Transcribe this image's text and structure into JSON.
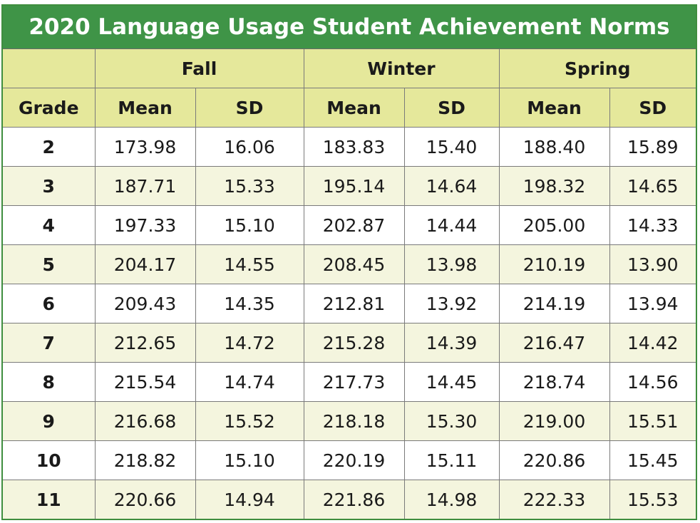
{
  "chart_data": {
    "type": "table",
    "title": "2020 Language Usage Student Achievement Norms",
    "seasons": [
      "Fall",
      "Winter",
      "Spring"
    ],
    "columns": [
      "Grade",
      "Mean",
      "SD",
      "Mean",
      "SD",
      "Mean",
      "SD"
    ],
    "rows": [
      [
        "2",
        "173.98",
        "16.06",
        "183.83",
        "15.40",
        "188.40",
        "15.89"
      ],
      [
        "3",
        "187.71",
        "15.33",
        "195.14",
        "14.64",
        "198.32",
        "14.65"
      ],
      [
        "4",
        "197.33",
        "15.10",
        "202.87",
        "14.44",
        "205.00",
        "14.33"
      ],
      [
        "5",
        "204.17",
        "14.55",
        "208.45",
        "13.98",
        "210.19",
        "13.90"
      ],
      [
        "6",
        "209.43",
        "14.35",
        "212.81",
        "13.92",
        "214.19",
        "13.94"
      ],
      [
        "7",
        "212.65",
        "14.72",
        "215.28",
        "14.39",
        "216.47",
        "14.42"
      ],
      [
        "8",
        "215.54",
        "14.74",
        "217.73",
        "14.45",
        "218.74",
        "14.56"
      ],
      [
        "9",
        "216.68",
        "15.52",
        "218.18",
        "15.30",
        "219.00",
        "15.51"
      ],
      [
        "10",
        "218.82",
        "15.10",
        "220.19",
        "15.11",
        "220.86",
        "15.45"
      ],
      [
        "11",
        "220.66",
        "14.94",
        "221.86",
        "14.98",
        "222.33",
        "15.53"
      ]
    ]
  },
  "colors": {
    "title_bg": "#3f9447",
    "header_bg": "#e5e89b",
    "stripe_bg": "#f4f5de"
  }
}
